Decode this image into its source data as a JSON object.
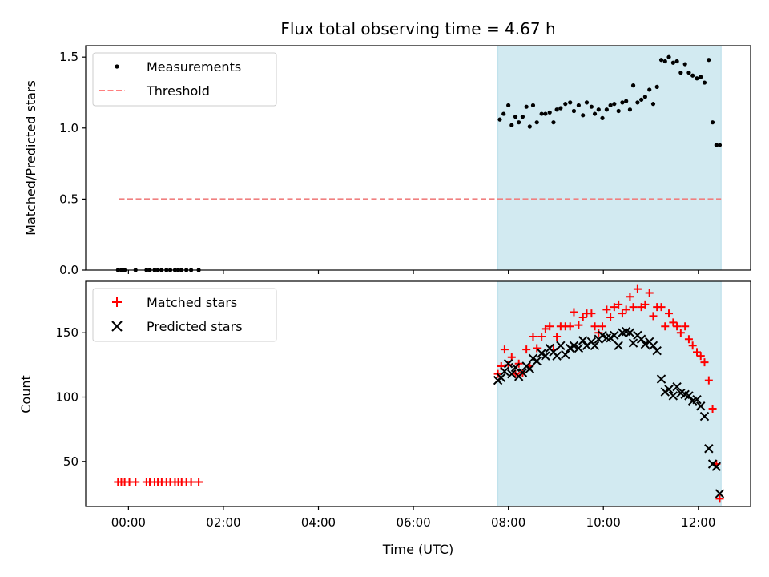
{
  "chart_data": {
    "type": "scatter",
    "title": "Flux total observing time = 4.67 h",
    "xlabel": "Time (UTC)",
    "x_unit": "hours UTC",
    "xlim": [
      -0.9,
      13.1
    ],
    "x_ticks": [
      {
        "value": 0,
        "label": "00:00"
      },
      {
        "value": 2,
        "label": "02:00"
      },
      {
        "value": 4,
        "label": "04:00"
      },
      {
        "value": 6,
        "label": "06:00"
      },
      {
        "value": 8,
        "label": "08:00"
      },
      {
        "value": 10,
        "label": "10:00"
      },
      {
        "value": 12,
        "label": "12:00"
      }
    ],
    "shaded_span": {
      "start": 7.78,
      "end": 12.48,
      "color": "#add8e6"
    },
    "panels": [
      {
        "id": "ratio",
        "ylabel": "Matched/Predicted stars",
        "ylim": [
          0,
          1.58
        ],
        "y_ticks": [
          {
            "value": 0,
            "label": "0.0"
          },
          {
            "value": 0.5,
            "label": "0.5"
          },
          {
            "value": 1.0,
            "label": "1.0"
          },
          {
            "value": 1.5,
            "label": "1.5"
          }
        ],
        "legend": [
          {
            "label": "Measurements",
            "marker": "dot",
            "color": "#000000"
          },
          {
            "label": "Threshold",
            "marker": "dash",
            "color": "#ff7f7f"
          }
        ],
        "threshold": {
          "y": 0.5,
          "x_start": -0.2,
          "x_end": 12.48,
          "color": "#f08080"
        },
        "measurements": {
          "x": [
            -0.22,
            -0.15,
            -0.08,
            0.15,
            0.38,
            0.45,
            0.55,
            0.62,
            0.7,
            0.8,
            0.88,
            0.98,
            1.05,
            1.12,
            1.22,
            1.32,
            1.48,
            7.82,
            7.9,
            8.0,
            8.07,
            8.15,
            8.22,
            8.3,
            8.38,
            8.45,
            8.52,
            8.6,
            8.7,
            8.78,
            8.87,
            8.95,
            9.02,
            9.1,
            9.2,
            9.3,
            9.38,
            9.48,
            9.57,
            9.65,
            9.75,
            9.82,
            9.9,
            9.98,
            10.07,
            10.15,
            10.23,
            10.32,
            10.4,
            10.48,
            10.56,
            10.63,
            10.72,
            10.8,
            10.88,
            10.97,
            11.05,
            11.13,
            11.22,
            11.3,
            11.38,
            11.47,
            11.55,
            11.63,
            11.72,
            11.8,
            11.88,
            11.97,
            12.05,
            12.13,
            12.22,
            12.3,
            12.38,
            12.45
          ],
          "y": [
            0,
            0,
            0,
            0,
            0,
            0,
            0,
            0,
            0,
            0,
            0,
            0,
            0,
            0,
            0,
            0,
            0,
            1.06,
            1.1,
            1.16,
            1.02,
            1.08,
            1.04,
            1.08,
            1.15,
            1.01,
            1.16,
            1.04,
            1.1,
            1.1,
            1.11,
            1.04,
            1.13,
            1.14,
            1.17,
            1.18,
            1.12,
            1.16,
            1.09,
            1.18,
            1.15,
            1.1,
            1.13,
            1.07,
            1.13,
            1.16,
            1.17,
            1.12,
            1.18,
            1.19,
            1.13,
            1.3,
            1.18,
            1.2,
            1.22,
            1.27,
            1.17,
            1.29,
            1.48,
            1.47,
            1.5,
            1.46,
            1.47,
            1.39,
            1.45,
            1.39,
            1.37,
            1.35,
            1.36,
            1.32,
            1.48,
            1.04,
            0.88,
            0.88
          ]
        }
      },
      {
        "id": "count",
        "ylabel": "Count",
        "ylim": [
          15,
          190
        ],
        "y_ticks": [
          {
            "value": 50,
            "label": "50"
          },
          {
            "value": 100,
            "label": "100"
          },
          {
            "value": 150,
            "label": "150"
          }
        ],
        "legend": [
          {
            "label": "Matched stars",
            "marker": "plus",
            "color": "#ff0000"
          },
          {
            "label": "Predicted stars",
            "marker": "x",
            "color": "#000000"
          }
        ],
        "series": [
          {
            "name": "Matched stars",
            "marker": "plus",
            "color": "#ff0000",
            "x": [
              -0.22,
              -0.15,
              -0.08,
              0.02,
              0.15,
              0.38,
              0.45,
              0.55,
              0.62,
              0.7,
              0.8,
              0.88,
              0.98,
              1.05,
              1.12,
              1.22,
              1.32,
              1.48,
              7.78,
              7.85,
              7.92,
              8.0,
              8.07,
              8.15,
              8.22,
              8.3,
              8.38,
              8.45,
              8.52,
              8.6,
              8.7,
              8.78,
              8.87,
              8.95,
              9.02,
              9.1,
              9.2,
              9.3,
              9.38,
              9.48,
              9.57,
              9.65,
              9.75,
              9.82,
              9.9,
              9.98,
              10.07,
              10.15,
              10.23,
              10.32,
              10.4,
              10.48,
              10.56,
              10.63,
              10.72,
              10.8,
              10.88,
              10.97,
              11.05,
              11.13,
              11.22,
              11.3,
              11.38,
              11.47,
              11.55,
              11.63,
              11.72,
              11.8,
              11.88,
              11.97,
              12.05,
              12.13,
              12.22,
              12.3,
              12.38,
              12.45
            ],
            "y": [
              34,
              34,
              34,
              34,
              34,
              34,
              34,
              34,
              34,
              34,
              34,
              34,
              34,
              34,
              34,
              34,
              34,
              34,
              118,
              124,
              137,
              125,
              131,
              118,
              126,
              119,
              137,
              124,
              147,
              138,
              147,
              153,
              155,
              137,
              147,
              155,
              155,
              155,
              166,
              156,
              162,
              165,
              165,
              155,
              150,
              155,
              168,
              162,
              170,
              172,
              165,
              168,
              178,
              170,
              184,
              170,
              172,
              181,
              163,
              170,
              170,
              155,
              165,
              158,
              155,
              150,
              155,
              145,
              140,
              135,
              132,
              127,
              113,
              91,
              48,
              21
            ]
          },
          {
            "name": "Predicted stars",
            "marker": "x",
            "color": "#000000",
            "x": [
              7.78,
              7.85,
              7.92,
              8.0,
              8.07,
              8.15,
              8.22,
              8.3,
              8.38,
              8.45,
              8.52,
              8.6,
              8.7,
              8.78,
              8.87,
              8.95,
              9.02,
              9.1,
              9.2,
              9.3,
              9.38,
              9.48,
              9.57,
              9.65,
              9.75,
              9.82,
              9.9,
              9.98,
              10.07,
              10.15,
              10.23,
              10.32,
              10.4,
              10.48,
              10.56,
              10.63,
              10.72,
              10.8,
              10.88,
              10.97,
              11.05,
              11.13,
              11.22,
              11.3,
              11.38,
              11.47,
              11.55,
              11.63,
              11.72,
              11.8,
              11.88,
              11.97,
              12.05,
              12.13,
              12.22,
              12.3,
              12.38,
              12.45
            ],
            "y": [
              113,
              115,
              120,
              126,
              118,
              123,
              116,
              119,
              124,
              122,
              130,
              128,
              134,
              132,
              138,
              135,
              132,
              140,
              133,
              138,
              140,
              138,
              144,
              140,
              143,
              140,
              145,
              148,
              146,
              146,
              148,
              140,
              150,
              151,
              150,
              142,
              148,
              145,
              141,
              143,
              140,
              136,
              114,
              104,
              106,
              101,
              108,
              103,
              102,
              101,
              97,
              98,
              93,
              85,
              60,
              48,
              46,
              25
            ]
          }
        ]
      }
    ]
  }
}
